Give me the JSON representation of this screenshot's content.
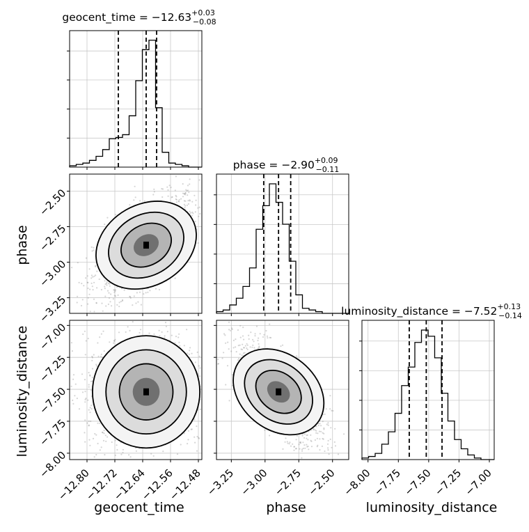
{
  "chart_data": {
    "type": "corner",
    "parameters": [
      "geocent_time",
      "phase",
      "luminosity_distance"
    ],
    "titles": [
      {
        "param": "geocent_time",
        "prefix": "geocent_time = ",
        "median": "−12.63",
        "plus": "+0.03",
        "minus": "−0.08"
      },
      {
        "param": "phase",
        "prefix": "phase = ",
        "median": "−2.90",
        "plus": "+0.09",
        "minus": "−0.11"
      },
      {
        "param": "luminosity_distance",
        "prefix": "luminosity_distance = ",
        "median": "−7.52",
        "plus": "+0.13",
        "minus": "−0.14"
      }
    ],
    "axes": {
      "geocent_time": {
        "range": [
          -12.85,
          -12.47
        ],
        "ticks": [
          -12.8,
          -12.72,
          -12.64,
          -12.56,
          -12.48
        ],
        "tick_labels": [
          "−12.80",
          "−12.72",
          "−12.64",
          "−12.56",
          "−12.48"
        ],
        "label": "geocent_time"
      },
      "phase": {
        "range": [
          -3.36,
          -2.38
        ],
        "ticks": [
          -3.25,
          -3.0,
          -2.75,
          -2.5
        ],
        "tick_labels": [
          "−3.25",
          "−3.00",
          "−2.75",
          "−2.50"
        ],
        "label": "phase"
      },
      "luminosity_distance": {
        "range": [
          -8.05,
          -6.96
        ],
        "ticks": [
          -8.0,
          -7.75,
          -7.5,
          -7.25,
          -7.0
        ],
        "tick_labels": [
          "−8.00",
          "−7.75",
          "−7.50",
          "−7.25",
          "−7.00"
        ],
        "label": "luminosity_distance"
      }
    },
    "quantiles": {
      "geocent_time": [
        -12.71,
        -12.63,
        -12.6
      ],
      "phase": [
        -3.01,
        -2.9,
        -2.81
      ],
      "luminosity_distance": [
        -7.66,
        -7.52,
        -7.39
      ]
    },
    "histograms": {
      "geocent_time": {
        "x_start": -12.85,
        "bin_width": 0.019,
        "counts": [
          1,
          2,
          3,
          5,
          8,
          13,
          21,
          22,
          24,
          38,
          64,
          87,
          94,
          44,
          11,
          3,
          2,
          1,
          0,
          0
        ]
      },
      "phase": {
        "x_start": -3.36,
        "bin_width": 0.049,
        "counts": [
          1,
          2,
          5,
          9,
          16,
          27,
          50,
          64,
          77,
          66,
          53,
          31,
          11,
          3,
          2,
          1,
          0,
          0,
          0,
          0
        ]
      },
      "luminosity_distance": {
        "x_start": -8.05,
        "bin_width": 0.0545,
        "counts": [
          1,
          2,
          4,
          10,
          18,
          30,
          48,
          60,
          76,
          84,
          80,
          66,
          43,
          25,
          13,
          7,
          3,
          1,
          0,
          0
        ]
      }
    },
    "pair_panels": [
      {
        "x": "geocent_time",
        "y": "phase",
        "mean": [
          -12.63,
          -2.88
        ],
        "sd": [
          0.06,
          0.14
        ],
        "corr": 0.6
      },
      {
        "x": "geocent_time",
        "y": "luminosity_distance",
        "mean": [
          -12.63,
          -7.52
        ],
        "sd": [
          0.07,
          0.18
        ],
        "corr": 0.05
      },
      {
        "x": "phase",
        "y": "luminosity_distance",
        "mean": [
          -2.9,
          -7.52
        ],
        "sd": [
          0.13,
          0.16
        ],
        "corr": -0.7
      }
    ],
    "grid": true
  }
}
